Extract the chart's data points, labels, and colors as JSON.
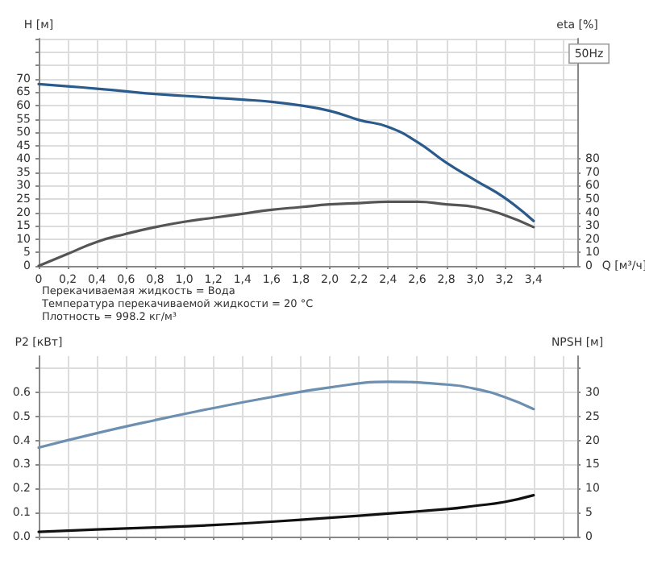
{
  "chart_data": [
    {
      "type": "line",
      "xlabel": "Q [м³/ч]",
      "ylabel": "H [м]",
      "y2label": "eta [%]",
      "x": [
        0,
        0.2,
        0.4,
        0.6,
        0.8,
        1.0,
        1.2,
        1.4,
        1.6,
        1.8,
        2.0,
        2.2,
        2.4,
        2.6,
        2.8,
        3.0,
        3.2,
        3.4
      ],
      "series": [
        {
          "color": "#2b5b8c",
          "values": [
            68,
            67.2,
            66.3,
            65.3,
            64.3,
            63.6,
            62.9,
            62.2,
            61.4,
            60,
            58,
            54.6,
            52,
            46.4,
            38.6,
            32,
            25.5,
            16.8
          ]
        },
        {
          "color": "#555555",
          "axis": "y2",
          "values": [
            0,
            9,
            18,
            24,
            29,
            33,
            36,
            39,
            42,
            44,
            46,
            47,
            48,
            48,
            46,
            44,
            38,
            29
          ]
        }
      ],
      "xlim": [
        0,
        3.7
      ],
      "xticks": [
        0,
        {
          "value": 0.2,
          "label": "0,2"
        },
        {
          "value": 0.4,
          "label": "0,4"
        },
        {
          "value": 0.6,
          "label": "0,6"
        },
        {
          "value": 0.8,
          "label": "0,8"
        },
        {
          "value": 1.0,
          "label": "1,0"
        },
        {
          "value": 1.2,
          "label": "1,2"
        },
        {
          "value": 1.4,
          "label": "1,4"
        },
        {
          "value": 1.6,
          "label": "1,6"
        },
        {
          "value": 1.8,
          "label": "1,8"
        },
        {
          "value": 2.0,
          "label": "2,0"
        },
        {
          "value": 2.2,
          "label": "2,2"
        },
        {
          "value": 2.4,
          "label": "2,4"
        },
        {
          "value": 2.6,
          "label": "2,6"
        },
        {
          "value": 2.8,
          "label": "2,8"
        },
        {
          "value": 3.0,
          "label": "3,0"
        },
        {
          "value": 3.2,
          "label": "3,2"
        },
        {
          "value": 3.4,
          "label": "3,4"
        },
        {
          "value": 3.6,
          "label": null
        }
      ],
      "ylim": [
        0,
        85
      ],
      "yticks": [
        0,
        5,
        10,
        15,
        20,
        25,
        30,
        35,
        40,
        45,
        50,
        55,
        60,
        65,
        70,
        {
          "value": 75,
          "label": null
        },
        {
          "value": 80,
          "label": null
        },
        {
          "value": 85,
          "label": null
        }
      ],
      "y2lim": [
        0,
        170
      ],
      "y2ticks": [
        0,
        10,
        20,
        30,
        40,
        50,
        60,
        70,
        80
      ],
      "grid": true,
      "annotations": [
        "50Hz",
        "Перекачиваемая жидкость = Вода",
        "Температура перекачиваемой жидкости = 20 °C",
        "Плотность = 998.2 кг/м³"
      ]
    },
    {
      "type": "line",
      "ylabel": "P2 [кВт]",
      "y2label": "NPSH [м]",
      "x": [
        0,
        0.4,
        0.8,
        1.2,
        1.6,
        2.0,
        2.4,
        2.8,
        3.0,
        3.2,
        3.4
      ],
      "series": [
        {
          "color": "#6d8fb0",
          "values": [
            0.37,
            0.43,
            0.484,
            0.534,
            0.58,
            0.62,
            0.643,
            0.632,
            0.614,
            0.58,
            0.53
          ]
        },
        {
          "color": "#111111",
          "axis": "y2",
          "values": [
            1.0,
            1.5,
            1.9,
            2.4,
            3.1,
            3.9,
            4.8,
            5.7,
            6.4,
            7.2,
            8.6
          ]
        }
      ],
      "xlim": [
        0,
        3.7
      ],
      "xticks": [
        {
          "value": 0,
          "label": null
        },
        {
          "value": 0.2,
          "label": null
        },
        {
          "value": 0.4,
          "label": null
        },
        {
          "value": 0.6,
          "label": null
        },
        {
          "value": 0.8,
          "label": null
        },
        {
          "value": 1.0,
          "label": null
        },
        {
          "value": 1.2,
          "label": null
        },
        {
          "value": 1.4,
          "label": null
        },
        {
          "value": 1.6,
          "label": null
        },
        {
          "value": 1.8,
          "label": null
        },
        {
          "value": 2.0,
          "label": null
        },
        {
          "value": 2.2,
          "label": null
        },
        {
          "value": 2.4,
          "label": null
        },
        {
          "value": 2.6,
          "label": null
        },
        {
          "value": 2.8,
          "label": null
        },
        {
          "value": 3.0,
          "label": null
        },
        {
          "value": 3.2,
          "label": null
        },
        {
          "value": 3.4,
          "label": null
        },
        {
          "value": 3.6,
          "label": null
        }
      ],
      "ylim": [
        0,
        0.75
      ],
      "yticks": [
        {
          "value": 0,
          "label": "0.0"
        },
        0.1,
        0.2,
        0.3,
        0.4,
        0.5,
        0.6,
        {
          "value": 0.7,
          "label": null
        }
      ],
      "y2lim": [
        0,
        37.5
      ],
      "y2ticks": [
        0,
        5,
        10,
        15,
        20,
        25,
        30,
        {
          "value": 35,
          "label": null
        }
      ],
      "grid": true,
      "tick_labels": "y"
    }
  ]
}
